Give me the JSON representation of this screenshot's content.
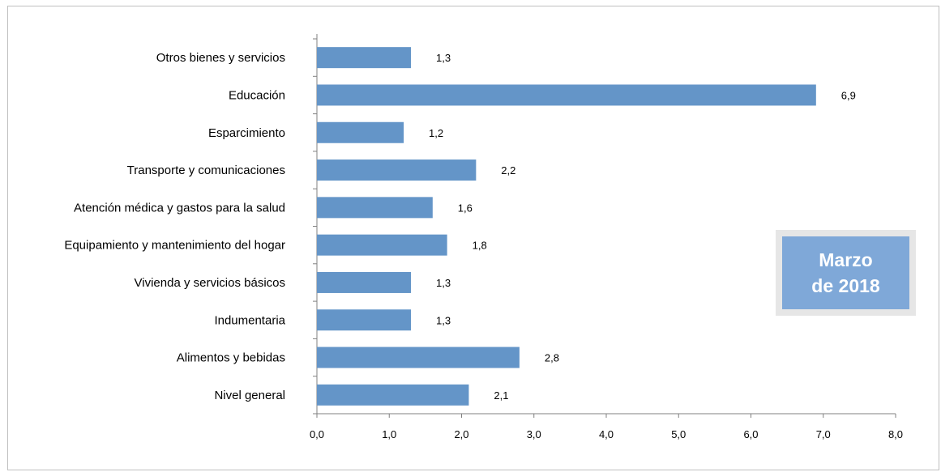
{
  "chart_data": {
    "type": "bar",
    "orientation": "horizontal",
    "categories": [
      "Otros bienes y servicios",
      "Educación",
      "Esparcimiento",
      "Transporte y comunicaciones",
      "Atención médica y gastos para la salud",
      "Equipamiento y  mantenimiento del hogar",
      "Vivienda y servicios básicos",
      "Indumentaria",
      "Alimentos y bebidas",
      "Nivel  general"
    ],
    "values": [
      1.3,
      6.9,
      1.2,
      2.2,
      1.6,
      1.8,
      1.3,
      1.3,
      2.8,
      2.1
    ],
    "value_labels": [
      "1,3",
      "6,9",
      "1,2",
      "2,2",
      "1,6",
      "1,8",
      "1,3",
      "1,3",
      "2,8",
      "2,1"
    ],
    "xlim": [
      0,
      8
    ],
    "x_ticks": [
      "0,0",
      "1,0",
      "2,0",
      "3,0",
      "4,0",
      "5,0",
      "6,0",
      "7,0",
      "8,0"
    ],
    "grid": false,
    "bar_color": "#6495c8",
    "title": "",
    "xlabel": "",
    "ylabel": ""
  },
  "badge": {
    "line1": "Marzo",
    "line2": "de 2018",
    "fill_color": "#7fa8d8",
    "border_color": "#e6e6e6"
  }
}
